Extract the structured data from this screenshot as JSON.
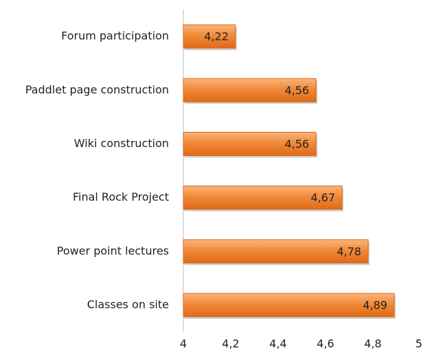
{
  "chart_data": {
    "type": "barh",
    "categories": [
      "Forum participation",
      "Paddlet page construction",
      "Wiki construction",
      "Final Rock Project",
      "Power point lectures",
      "Classes on site"
    ],
    "values": [
      4.22,
      4.56,
      4.56,
      4.67,
      4.78,
      4.89
    ],
    "value_labels": [
      "4,22",
      "4,56",
      "4,56",
      "4,67",
      "4,78",
      "4,89"
    ],
    "color": "#f08a3a",
    "xlim": [
      4,
      5
    ],
    "xticks": [
      4,
      {
        "value": 4.2,
        "label": "4,2"
      },
      {
        "value": 4.4,
        "label": "4,4"
      },
      {
        "value": 4.6,
        "label": "4,6"
      },
      {
        "value": 4.8,
        "label": "4,8"
      },
      5
    ]
  }
}
